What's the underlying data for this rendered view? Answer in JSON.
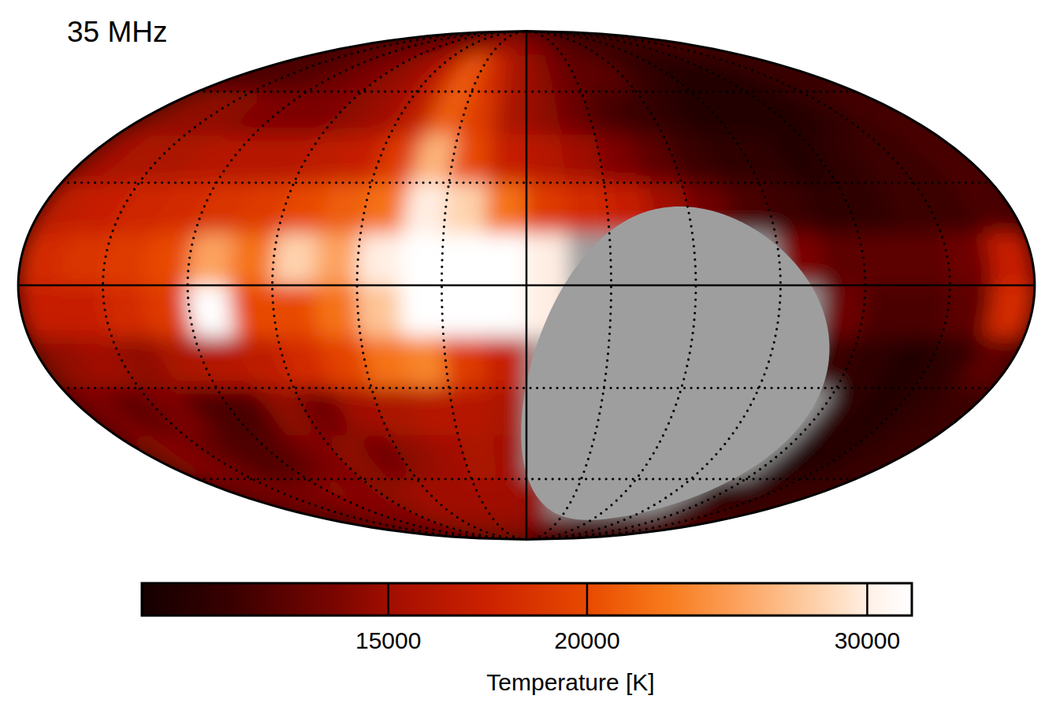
{
  "chart_data": {
    "type": "heatmap",
    "title": "35 MHz",
    "xlim": [
      180,
      -180
    ],
    "ylim": [
      -90,
      90
    ],
    "xticks": [
      150,
      120,
      90,
      60,
      30,
      0,
      -30,
      -60,
      -90,
      -120,
      -150
    ],
    "yticks": [
      60,
      30,
      0,
      -30,
      -60
    ],
    "grid": true,
    "tick_labels": false,
    "x_bins": [
      180,
      165,
      150,
      135,
      120,
      105,
      90,
      75,
      60,
      45,
      30,
      15,
      0,
      -15,
      -30,
      -45,
      -60,
      -75,
      -90,
      -105,
      -120,
      -135,
      -150,
      -165,
      -180
    ],
    "y_bins": [
      90,
      75,
      60,
      45,
      30,
      15,
      0,
      -15,
      -30,
      -45,
      -60,
      -75,
      -90
    ],
    "cells": [
      [
        13000,
        13000,
        13000,
        13000,
        13500,
        13500,
        14000,
        14000,
        14500,
        15000,
        15000,
        14500,
        14000,
        13500,
        13000,
        12500,
        12000,
        12000,
        12000,
        12000,
        12000,
        12500,
        12500,
        12500
      ],
      [
        13000,
        12500,
        12500,
        13000,
        13500,
        14000,
        14500,
        15000,
        17000,
        21000,
        18000,
        15500,
        14500,
        13500,
        13000,
        13000,
        12000,
        11500,
        11000,
        11000,
        11000,
        11500,
        12000,
        12000
      ],
      [
        14500,
        14500,
        14500,
        14000,
        14000,
        14000,
        14500,
        15000,
        16500,
        21000,
        19000,
        15500,
        14500,
        13500,
        12500,
        12000,
        11500,
        11000,
        11000,
        11000,
        11000,
        11500,
        12000,
        12500
      ],
      [
        15000,
        15500,
        15500,
        16000,
        16000,
        16000,
        16500,
        17000,
        19000,
        26000,
        20000,
        17000,
        16000,
        15000,
        14000,
        13000,
        12000,
        11500,
        11500,
        11000,
        11500,
        12000,
        12000,
        12500
      ],
      [
        16500,
        17000,
        17500,
        18000,
        18500,
        19000,
        20000,
        21000,
        22000,
        30000,
        28000,
        22000,
        19000,
        18000,
        17000,
        15000,
        13500,
        12500,
        12000,
        11500,
        11500,
        12000,
        12000,
        12500
      ],
      [
        18000,
        18500,
        19000,
        20000,
        25000,
        22000,
        28000,
        25000,
        30000,
        32000,
        32000,
        32000,
        30000,
        null,
        null,
        null,
        null,
        null,
        14000,
        13000,
        13000,
        13000,
        13500,
        17000
      ],
      [
        17000,
        17000,
        18000,
        19000,
        32000,
        20000,
        20000,
        22000,
        27000,
        32000,
        32000,
        32000,
        30000,
        null,
        null,
        null,
        null,
        null,
        null,
        13500,
        12500,
        12500,
        13000,
        18000
      ],
      [
        14500,
        15000,
        14500,
        15500,
        16000,
        16500,
        18000,
        19500,
        22000,
        23000,
        19000,
        17000,
        null,
        null,
        null,
        null,
        null,
        null,
        null,
        12000,
        11500,
        11000,
        11500,
        13000
      ],
      [
        14000,
        13000,
        14000,
        12500,
        12500,
        14500,
        13500,
        15000,
        15500,
        16000,
        16000,
        15500,
        null,
        null,
        null,
        null,
        null,
        null,
        null,
        null,
        11500,
        11000,
        11500,
        12000
      ],
      [
        14500,
        14000,
        13000,
        12500,
        13000,
        14000,
        14500,
        13500,
        14500,
        15000,
        15500,
        15000,
        null,
        null,
        null,
        null,
        null,
        null,
        null,
        null,
        11000,
        11000,
        11500,
        12000
      ],
      [
        14000,
        14000,
        13500,
        14000,
        14500,
        14000,
        14500,
        15000,
        15000,
        15000,
        15000,
        15000,
        14500,
        null,
        null,
        null,
        null,
        null,
        null,
        11500,
        11500,
        11500,
        12000,
        12000
      ],
      [
        13500,
        13500,
        13500,
        14000,
        14000,
        14000,
        14500,
        14500,
        14500,
        14500,
        14500,
        14500,
        14000,
        13500,
        13000,
        12500,
        12000,
        12000,
        12000,
        12000,
        12000,
        12500,
        12500,
        13000
      ]
    ],
    "masked_region": {
      "center": [
        -57.07,
        -27.13
      ],
      "radius": 50,
      "color": "#9e9e9e"
    },
    "colorbar": {
      "label": "Temperature [K]",
      "range": [
        10500,
        32000
      ],
      "ticks": [
        15000,
        20000,
        30000
      ],
      "log": true
    }
  }
}
